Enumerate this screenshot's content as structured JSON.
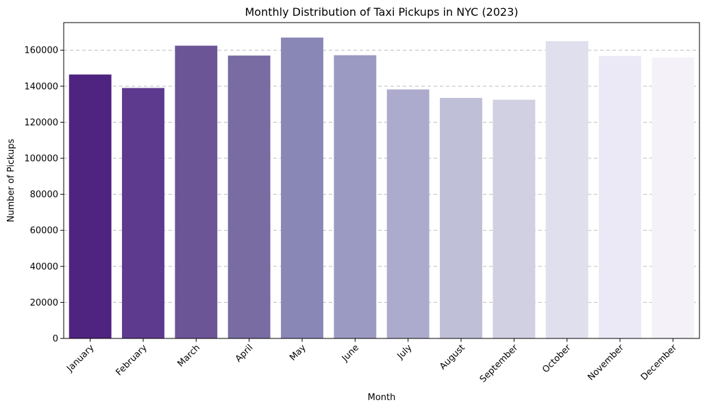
{
  "chart_data": {
    "type": "bar",
    "title": "Monthly Distribution of Taxi Pickups in NYC (2023)",
    "xlabel": "Month",
    "ylabel": "Number of Pickups",
    "categories": [
      "January",
      "February",
      "March",
      "April",
      "May",
      "June",
      "July",
      "August",
      "September",
      "October",
      "November",
      "December"
    ],
    "values": [
      146500,
      139000,
      162500,
      157000,
      167000,
      157200,
      138200,
      133500,
      132500,
      165000,
      156800,
      156000
    ],
    "ylim": [
      0,
      175300
    ],
    "yticks": [
      0,
      20000,
      40000,
      60000,
      80000,
      100000,
      120000,
      140000,
      160000
    ],
    "ytick_labels": [
      "0",
      "20000",
      "40000",
      "60000",
      "80000",
      "100000",
      "120000",
      "140000",
      "160000"
    ],
    "grid": "y dashed",
    "colors": [
      "#4f2380",
      "#5e3a8e",
      "#6c5597",
      "#786ca2",
      "#8887b6",
      "#9b9ac3",
      "#acabcd",
      "#bfbfd8",
      "#d1d0e2",
      "#dfdfed",
      "#ebe9f5",
      "#f4f2f8"
    ]
  }
}
